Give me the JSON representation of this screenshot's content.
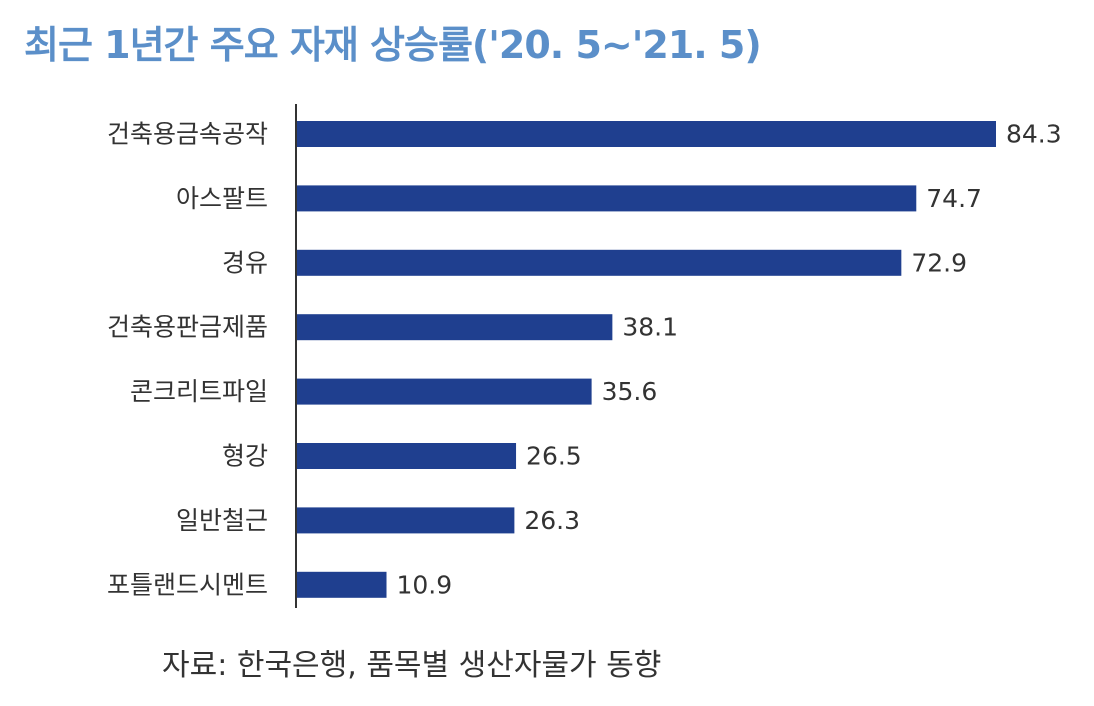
{
  "chart_data": {
    "type": "bar",
    "orientation": "horizontal",
    "title": "최근 1년간 주요 자재 상승률('20. 5~'21. 5)",
    "categories": [
      "건축용금속공작",
      "아스팔트",
      "경유",
      "건축용판금제품",
      "콘크리트파일",
      "형강",
      "일반철근",
      "포틀랜드시멘트"
    ],
    "values": [
      84.3,
      74.7,
      72.9,
      38.1,
      35.6,
      26.5,
      26.3,
      10.9
    ],
    "value_labels": [
      "84.3",
      "74.7",
      "72.9",
      "38.1",
      "35.6",
      "26.5",
      "26.3",
      "10.9"
    ],
    "xlim": [
      0,
      90
    ],
    "xlabel": "",
    "ylabel": "",
    "grid": false,
    "legend": "none",
    "bar_color": "#1f3f8f",
    "title_color": "#5b8fc9",
    "source": "자료: 한국은행, 품목별 생산자물가 동향"
  }
}
